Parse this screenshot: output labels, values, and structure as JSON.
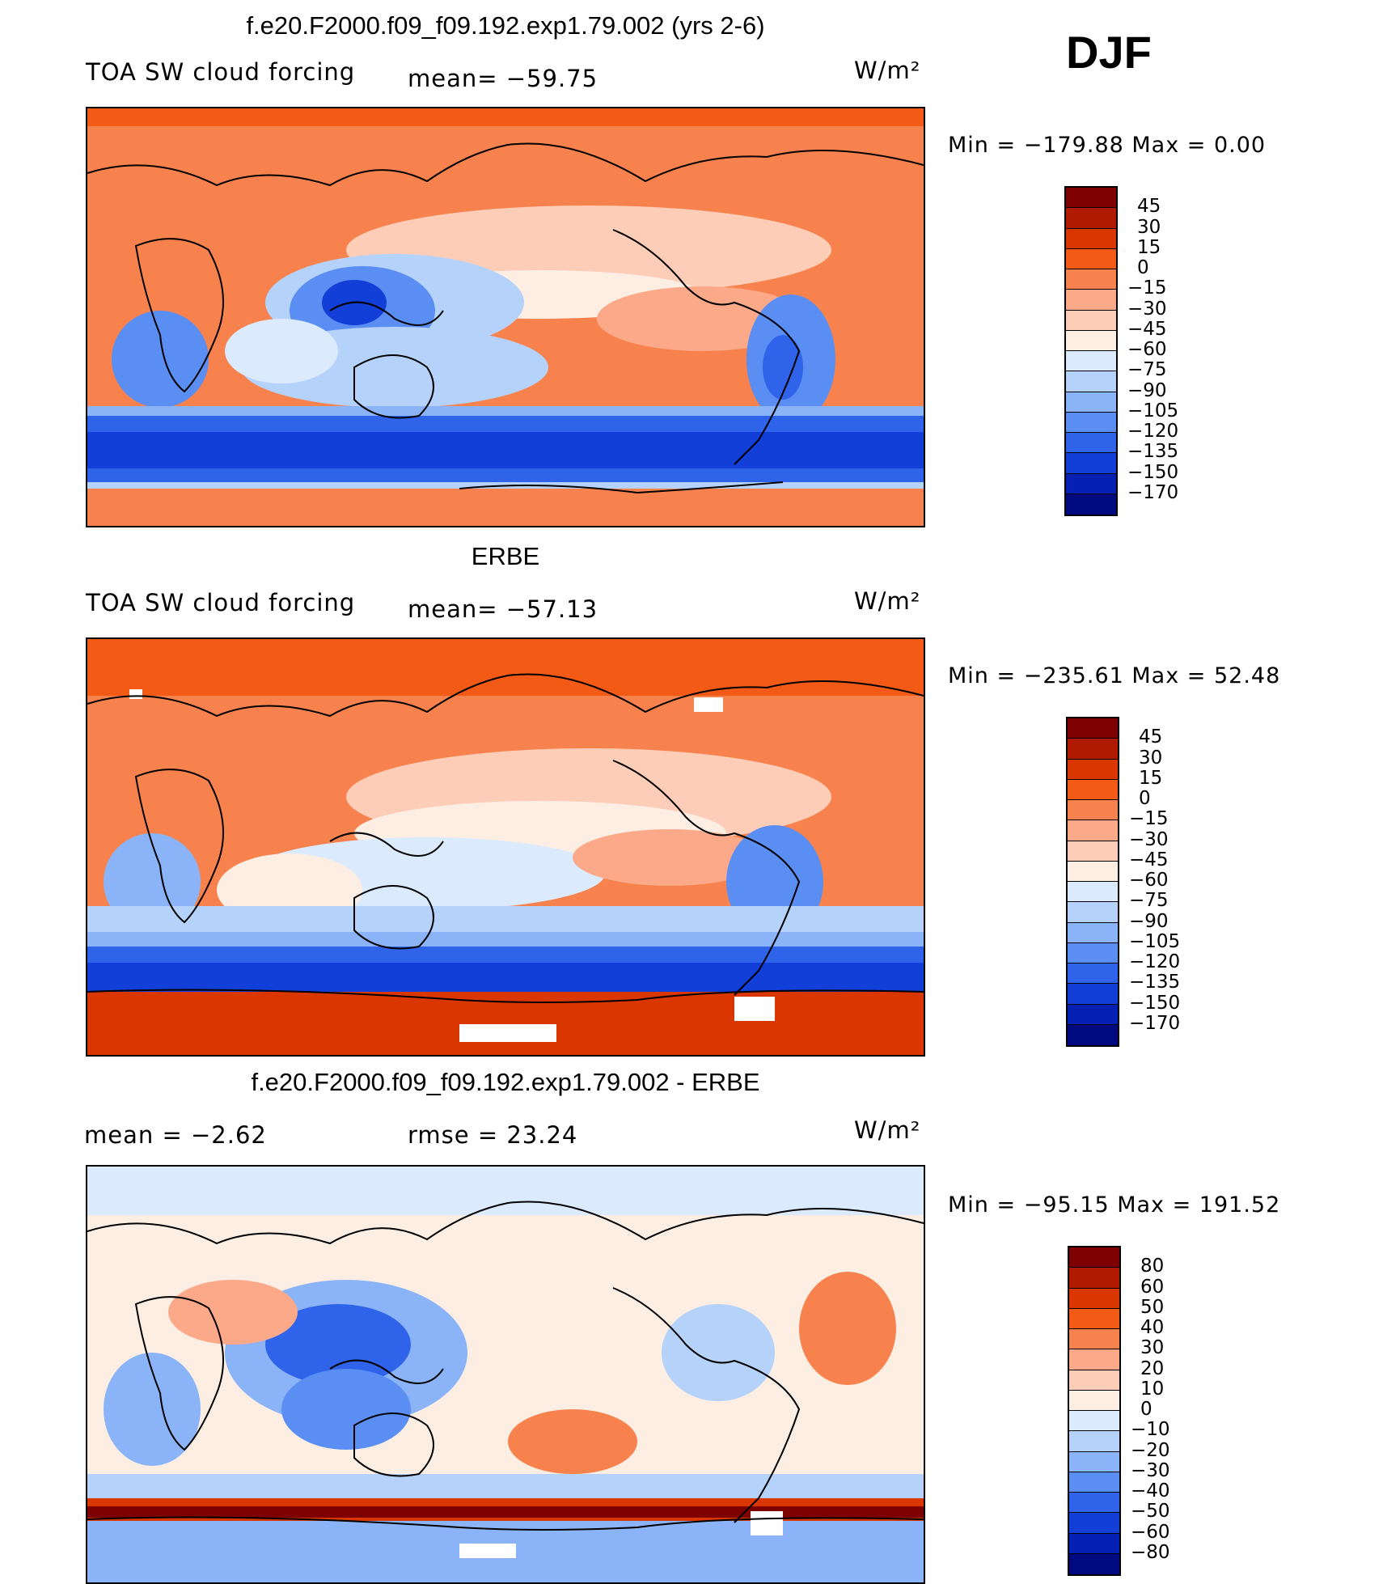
{
  "season": "DJF",
  "panels": [
    {
      "title": "f.e20.F2000.f09_f09.192.exp1.79.002 (yrs 2-6)",
      "variable": "TOA SW cloud forcing",
      "stat1": "mean=  −59.75",
      "stat2": "",
      "units": "W/m²",
      "minmax": "Min  =  −179.88  Max  =      0.00",
      "levels": [
        "45",
        "30",
        "15",
        "0",
        "−15",
        "−30",
        "−45",
        "−60",
        "−75",
        "−90",
        "−105",
        "−120",
        "−135",
        "−150",
        "−170"
      ],
      "colors": [
        "#7f0000",
        "#b01a00",
        "#d93600",
        "#f25a16",
        "#f7824d",
        "#fca98a",
        "#fdcdb8",
        "#fdeee4",
        "#dbeafc",
        "#b5d2fb",
        "#8ab4f7",
        "#5b8ef2",
        "#2f64ea",
        "#123fd8",
        "#0521b3",
        "#000a80"
      ]
    },
    {
      "title": "ERBE",
      "variable": "TOA SW cloud forcing",
      "stat1": "mean=  −57.13",
      "stat2": "",
      "units": "W/m²",
      "minmax": "Min  =  −235.61  Max  =    52.48",
      "levels": [
        "45",
        "30",
        "15",
        "0",
        "−15",
        "−30",
        "−45",
        "−60",
        "−75",
        "−90",
        "−105",
        "−120",
        "−135",
        "−150",
        "−170"
      ],
      "colors": [
        "#7f0000",
        "#b01a00",
        "#d93600",
        "#f25a16",
        "#f7824d",
        "#fca98a",
        "#fdcdb8",
        "#fdeee4",
        "#dbeafc",
        "#b5d2fb",
        "#8ab4f7",
        "#5b8ef2",
        "#2f64ea",
        "#123fd8",
        "#0521b3",
        "#000a80"
      ]
    },
    {
      "title": "f.e20.F2000.f09_f09.192.exp1.79.002 - ERBE",
      "variable": "",
      "stat1": "mean  =     −2.62",
      "stat2": "rmse  =     23.24",
      "units": "W/m²",
      "minmax": "Min  =  −95.15  Max  =  191.52",
      "levels": [
        "80",
        "60",
        "50",
        "40",
        "30",
        "20",
        "10",
        "0",
        "−10",
        "−20",
        "−30",
        "−40",
        "−50",
        "−60",
        "−80"
      ],
      "colors": [
        "#7f0000",
        "#b01a00",
        "#d93600",
        "#f25a16",
        "#f7824d",
        "#fca98a",
        "#fdcdb8",
        "#fdeee4",
        "#dbeafc",
        "#b5d2fb",
        "#8ab4f7",
        "#5b8ef2",
        "#2f64ea",
        "#123fd8",
        "#0521b3",
        "#000a80"
      ]
    }
  ]
}
